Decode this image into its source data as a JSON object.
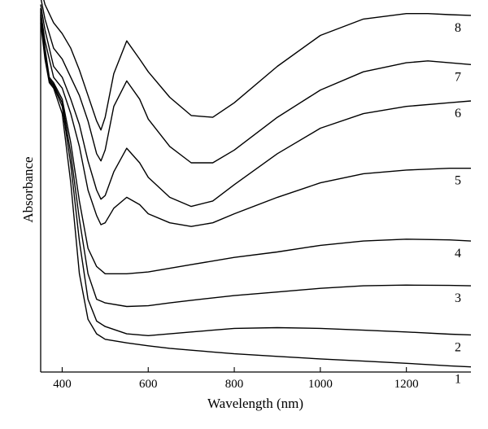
{
  "chart_data": {
    "type": "line",
    "xlabel": "Wavelength (nm)",
    "ylabel": "Absorbance",
    "xlim": [
      350,
      1350
    ],
    "ylim": [
      0,
      10
    ],
    "xticks": [
      400,
      600,
      800,
      1000,
      1200
    ],
    "yticks": [],
    "grid": false,
    "legend": "none",
    "line_color": "#000000",
    "series": [
      {
        "name": "1",
        "x": [
          350,
          360,
          370,
          380,
          400,
          420,
          440,
          460,
          480,
          500,
          550,
          600,
          650,
          700,
          800,
          900,
          1000,
          1100,
          1200,
          1300,
          1350
        ],
        "y": [
          9.6,
          8.6,
          7.95,
          7.8,
          7.1,
          5.2,
          2.7,
          1.45,
          1.05,
          0.9,
          0.8,
          0.72,
          0.65,
          0.6,
          0.5,
          0.43,
          0.36,
          0.3,
          0.24,
          0.17,
          0.14
        ]
      },
      {
        "name": "2",
        "x": [
          350,
          360,
          370,
          380,
          400,
          420,
          440,
          460,
          480,
          500,
          550,
          600,
          650,
          700,
          800,
          900,
          1000,
          1100,
          1200,
          1300,
          1350
        ],
        "y": [
          9.7,
          8.7,
          8.0,
          7.85,
          7.3,
          5.7,
          3.6,
          2.0,
          1.4,
          1.25,
          1.05,
          1.0,
          1.05,
          1.1,
          1.2,
          1.22,
          1.2,
          1.15,
          1.1,
          1.04,
          1.02
        ]
      },
      {
        "name": "3",
        "x": [
          350,
          360,
          370,
          380,
          400,
          420,
          440,
          460,
          480,
          500,
          550,
          600,
          650,
          700,
          800,
          900,
          1000,
          1100,
          1200,
          1300,
          1350
        ],
        "y": [
          9.75,
          8.8,
          8.05,
          7.9,
          7.4,
          6.0,
          4.2,
          2.7,
          2.0,
          1.9,
          1.8,
          1.82,
          1.9,
          1.97,
          2.1,
          2.2,
          2.3,
          2.37,
          2.39,
          2.38,
          2.37
        ]
      },
      {
        "name": "4",
        "x": [
          350,
          360,
          370,
          380,
          400,
          420,
          440,
          460,
          480,
          500,
          550,
          600,
          650,
          700,
          800,
          900,
          1000,
          1100,
          1200,
          1300,
          1350
        ],
        "y": [
          9.8,
          8.9,
          8.1,
          7.95,
          7.5,
          6.3,
          4.7,
          3.4,
          2.9,
          2.7,
          2.7,
          2.75,
          2.85,
          2.95,
          3.15,
          3.3,
          3.48,
          3.6,
          3.65,
          3.63,
          3.6
        ]
      },
      {
        "name": "5",
        "x": [
          350,
          360,
          380,
          400,
          420,
          440,
          460,
          480,
          490,
          500,
          520,
          550,
          580,
          600,
          650,
          700,
          750,
          800,
          900,
          1000,
          1100,
          1200,
          1300,
          1350
        ],
        "y": [
          9.9,
          9.1,
          8.1,
          7.8,
          7.1,
          6.2,
          5.0,
          4.3,
          4.05,
          4.1,
          4.5,
          4.8,
          4.6,
          4.35,
          4.1,
          4.0,
          4.1,
          4.35,
          4.8,
          5.2,
          5.45,
          5.55,
          5.6,
          5.6
        ]
      },
      {
        "name": "6",
        "x": [
          350,
          360,
          380,
          400,
          420,
          440,
          460,
          480,
          490,
          500,
          520,
          550,
          580,
          600,
          650,
          700,
          750,
          800,
          900,
          1000,
          1100,
          1200,
          1300,
          1350
        ],
        "y": [
          10.1,
          9.4,
          8.4,
          8.1,
          7.5,
          6.8,
          5.8,
          5.0,
          4.75,
          4.85,
          5.5,
          6.15,
          5.75,
          5.35,
          4.8,
          4.55,
          4.7,
          5.15,
          6.0,
          6.7,
          7.1,
          7.3,
          7.4,
          7.45
        ]
      },
      {
        "name": "7",
        "x": [
          350,
          360,
          380,
          400,
          420,
          440,
          460,
          480,
          490,
          500,
          520,
          550,
          580,
          600,
          650,
          700,
          750,
          800,
          900,
          1000,
          1100,
          1200,
          1250,
          1300,
          1350
        ],
        "y": [
          10.3,
          9.7,
          8.9,
          8.6,
          8.1,
          7.6,
          6.9,
          6.0,
          5.8,
          6.1,
          7.3,
          8.0,
          7.5,
          6.95,
          6.2,
          5.75,
          5.75,
          6.1,
          7.0,
          7.75,
          8.25,
          8.5,
          8.55,
          8.5,
          8.45
        ]
      },
      {
        "name": "8",
        "x": [
          350,
          360,
          380,
          400,
          420,
          440,
          460,
          480,
          490,
          500,
          520,
          550,
          580,
          600,
          650,
          700,
          750,
          800,
          900,
          1000,
          1100,
          1200,
          1250,
          1300,
          1350
        ],
        "y": [
          10.55,
          10.1,
          9.6,
          9.3,
          8.9,
          8.3,
          7.6,
          6.9,
          6.65,
          7.0,
          8.2,
          9.1,
          8.6,
          8.25,
          7.55,
          7.05,
          7.0,
          7.4,
          8.4,
          9.25,
          9.7,
          9.85,
          9.85,
          9.82,
          9.8
        ]
      }
    ]
  }
}
